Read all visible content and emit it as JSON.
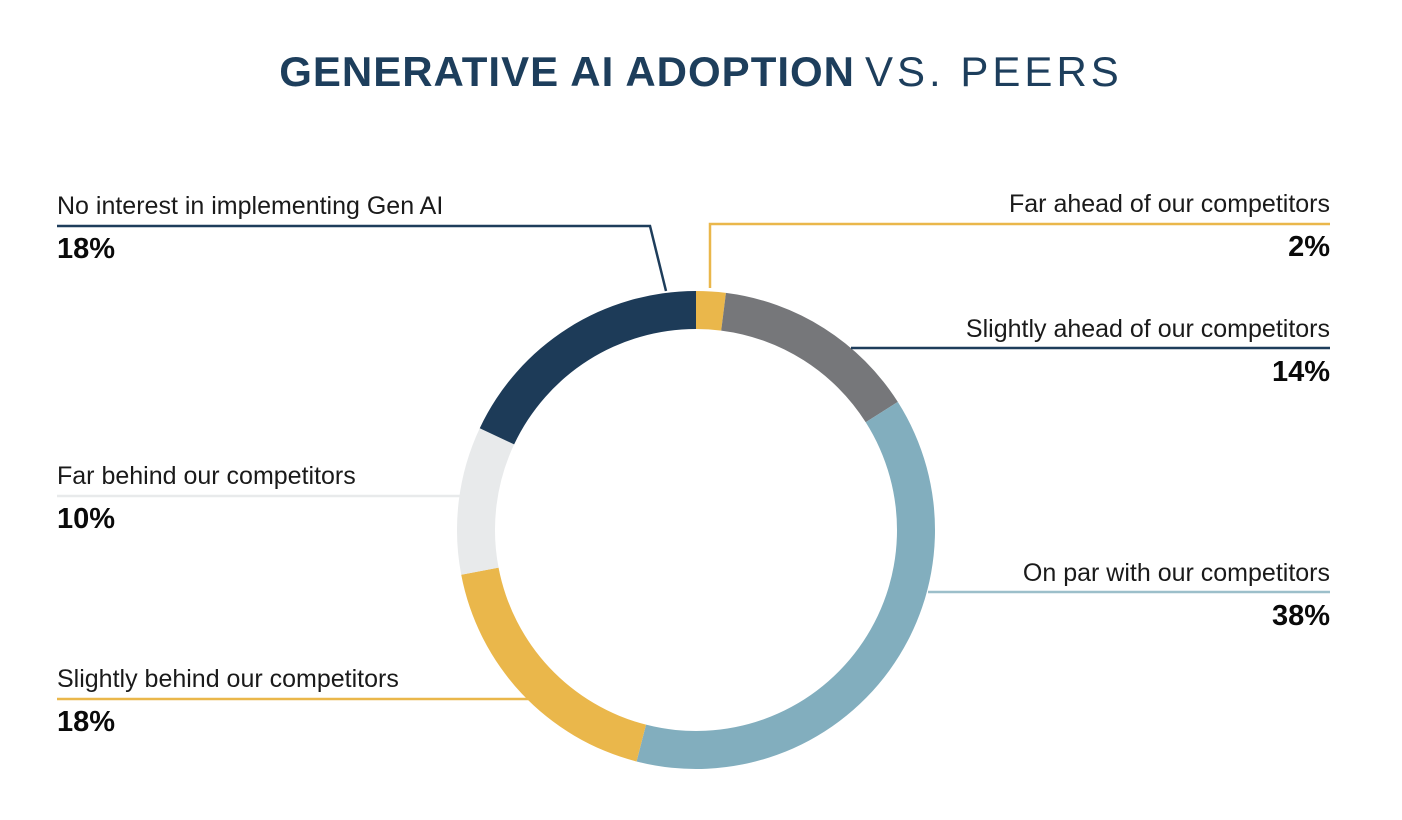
{
  "title": {
    "main": "GENERATIVE AI ADOPTION",
    "suffix": "VS. PEERS",
    "color": "#1d3e5c"
  },
  "chart_data": {
    "type": "pie",
    "subtype": "donut",
    "title": "GENERATIVE AI ADOPTION VS. PEERS",
    "unit": "%",
    "start_angle_deg": 0,
    "direction": "clockwise",
    "total": 100,
    "segments": [
      {
        "id": "far-ahead",
        "label": "Far ahead of our competitors",
        "value": 2,
        "value_label": "2%",
        "color": "#eab74b",
        "line_color": "#eab74b",
        "callout_side": "right"
      },
      {
        "id": "slightly-ahead",
        "label": "Slightly ahead of our competitors",
        "value": 14,
        "value_label": "14%",
        "color": "#76777a",
        "line_color": "#1e3d5b",
        "callout_side": "right"
      },
      {
        "id": "on-par",
        "label": "On par with our competitors",
        "value": 38,
        "value_label": "38%",
        "color": "#82aebe",
        "line_color": "#9cbfca",
        "callout_side": "right"
      },
      {
        "id": "slightly-behind",
        "label": "Slightly behind our competitors",
        "value": 18,
        "value_label": "18%",
        "color": "#eab74b",
        "line_color": "#eab74b",
        "callout_side": "left"
      },
      {
        "id": "far-behind",
        "label": "Far behind our competitors",
        "value": 10,
        "value_label": "10%",
        "color": "#e8eaeb",
        "line_color": "#e8eaeb",
        "callout_side": "left"
      },
      {
        "id": "no-interest",
        "label": "No interest in implementing Gen AI",
        "value": 18,
        "value_label": "18%",
        "color": "#1d3b58",
        "line_color": "#1e3d5b",
        "callout_side": "left"
      }
    ]
  }
}
